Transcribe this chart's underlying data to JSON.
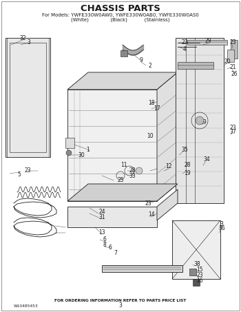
{
  "title": "CHASSIS PARTS",
  "subtitle_line1": "For Models: YWFE330W0AW0, YWFE330W0AB0, YWFE330W0AS0",
  "subtitle_line2": "(White)              (Black)           (Stainless)",
  "footer_left": "W10485453",
  "footer_center": "FOR ORDERING INFORMATION REFER TO PARTS PRICE LIST",
  "footer_page": "3",
  "bg_color": "#ffffff",
  "line_color": "#1a1a1a",
  "title_fontsize": 9.5,
  "subtitle_fontsize": 5.0,
  "label_fontsize": 5.5,
  "footer_fontsize": 4.2
}
